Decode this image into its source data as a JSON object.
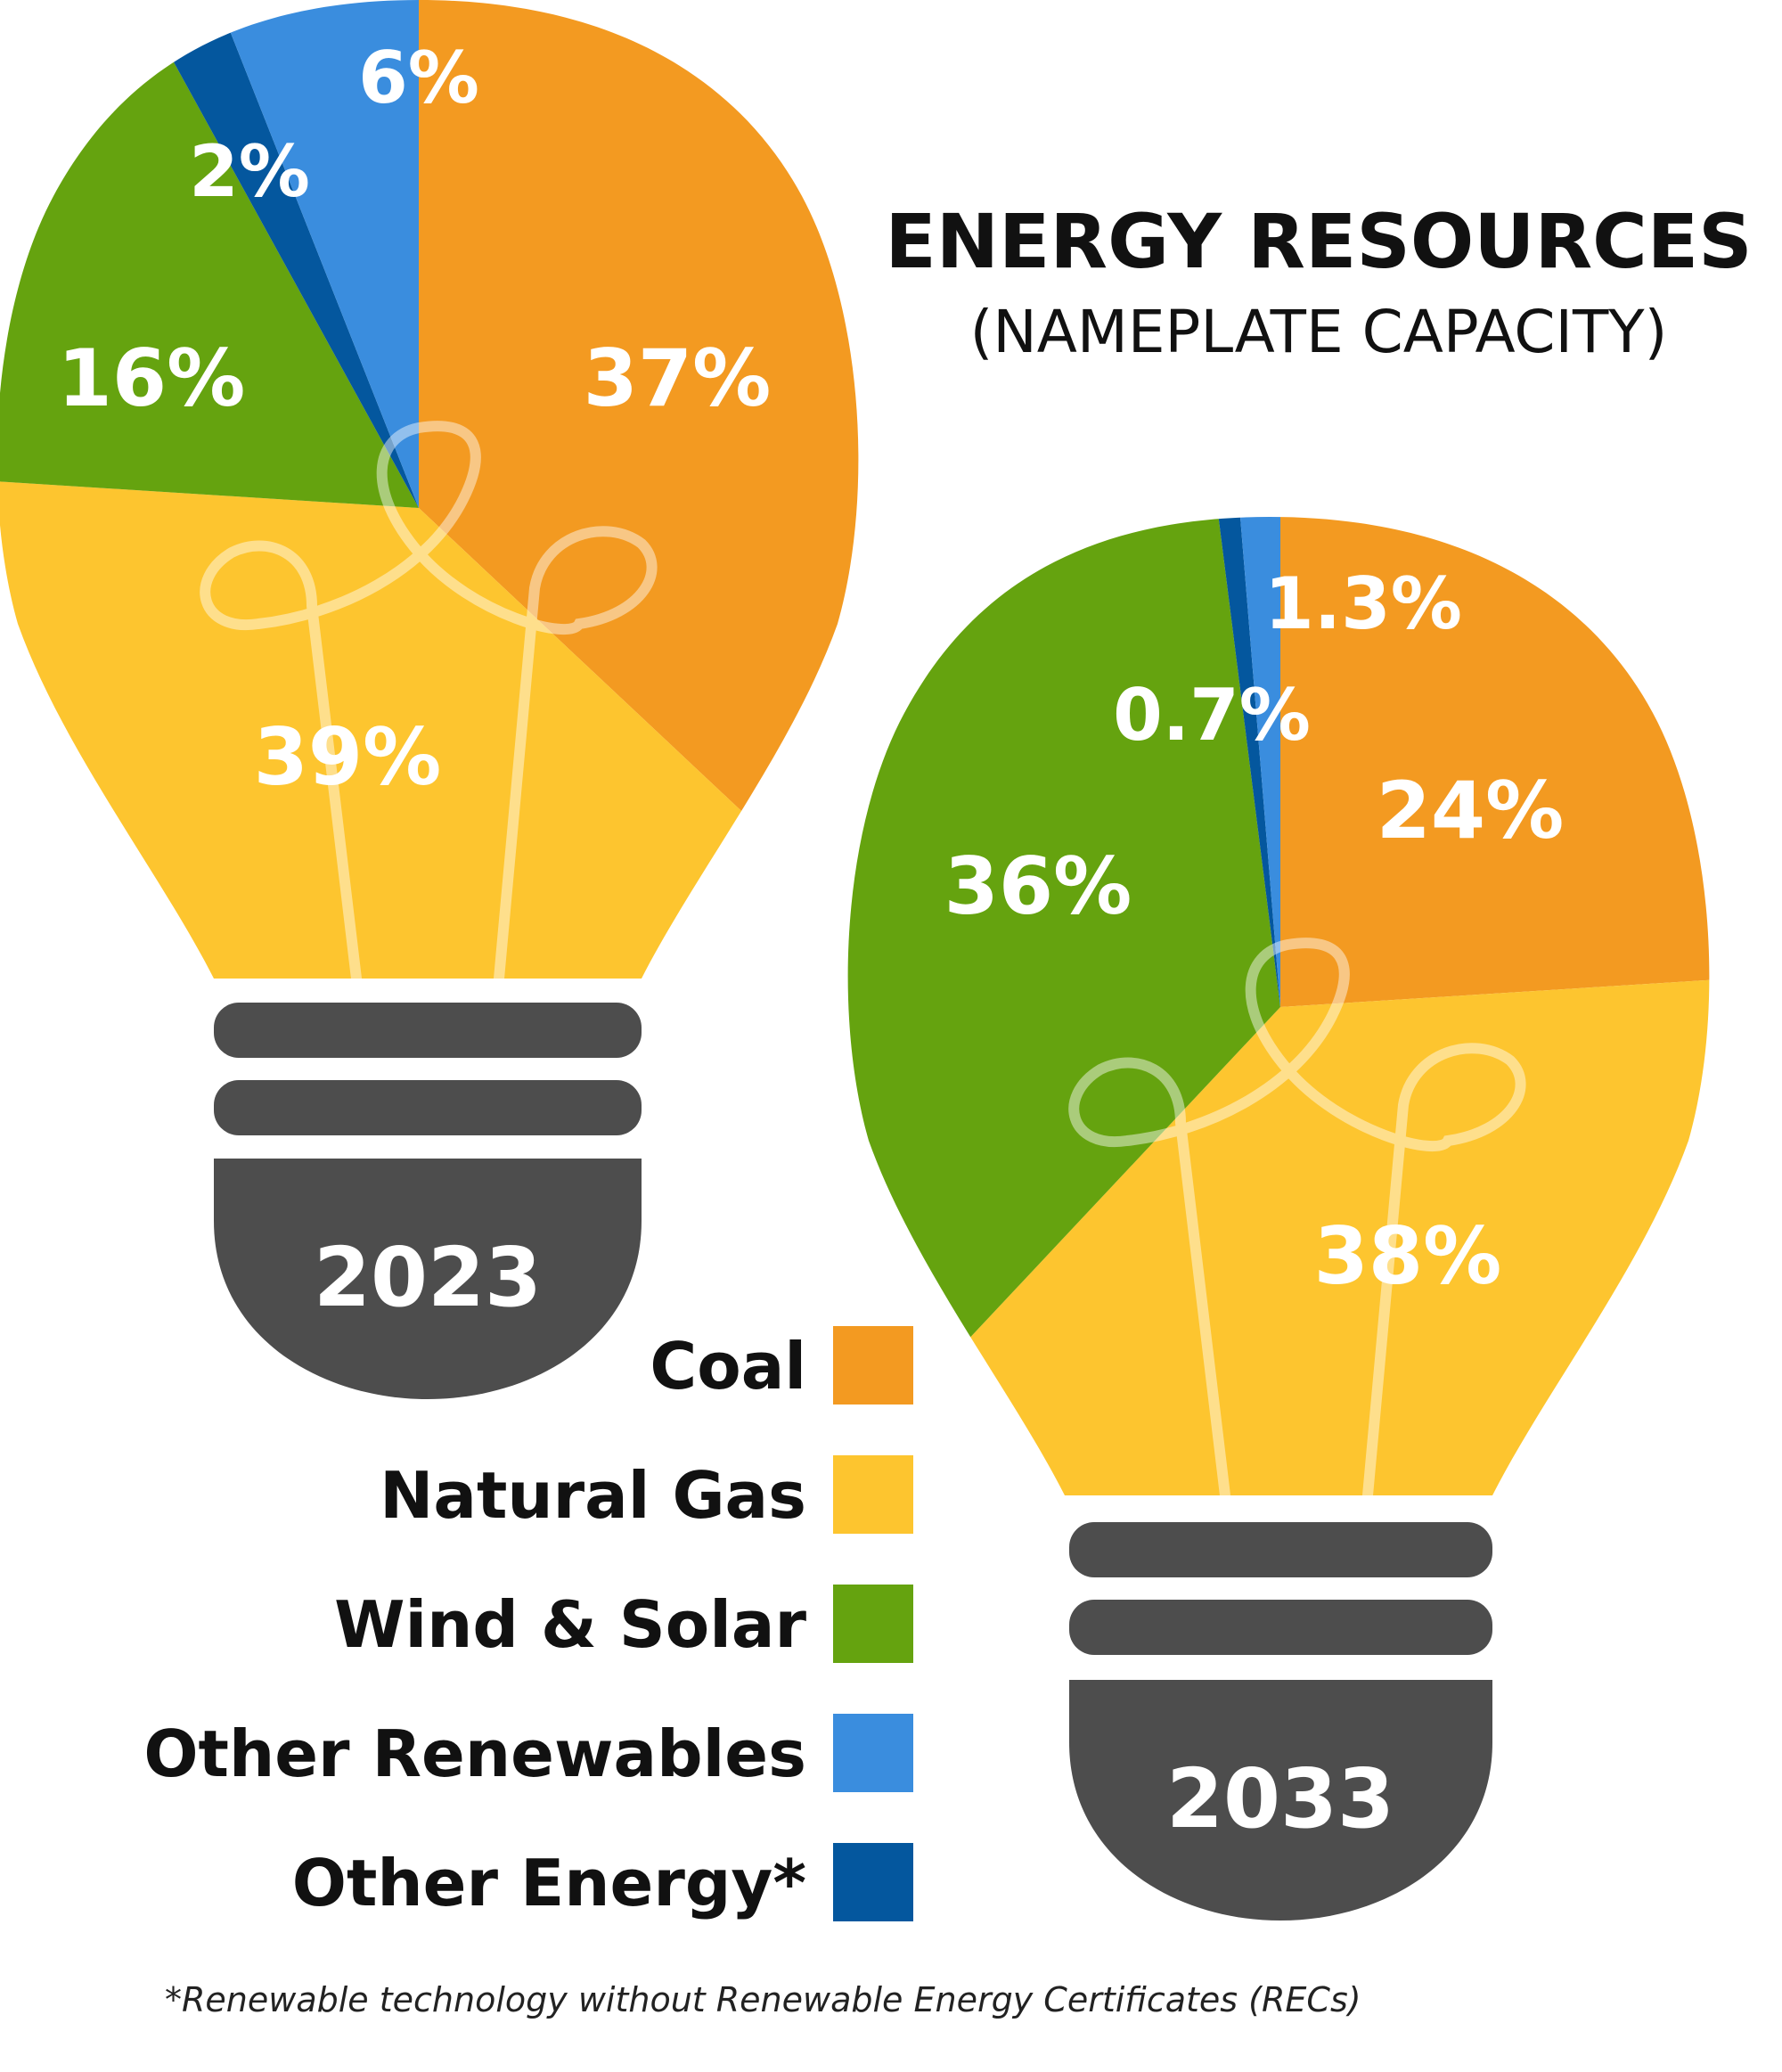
{
  "title": "ENERGY RESOURCES",
  "subtitle": "(NAMEPLATE CAPACITY)",
  "footnote": "*Renewable technology without Renewable Energy Certificates (RECs)",
  "legend": [
    {
      "label": "Coal",
      "color": "#F39A21"
    },
    {
      "label": "Natural Gas",
      "color": "#FDC52F"
    },
    {
      "label": "Wind & Solar",
      "color": "#65A30F"
    },
    {
      "label": "Other Renewables",
      "color": "#3A8DDE"
    },
    {
      "label": "Other Energy*",
      "color": "#04579E"
    }
  ],
  "chart_data": [
    {
      "type": "pie",
      "year_label": "2023",
      "categories": [
        "Coal",
        "Natural Gas",
        "Wind & Solar",
        "Other Energy*",
        "Other Renewables"
      ],
      "values": [
        37,
        39,
        16,
        2,
        6
      ],
      "labels": [
        "37%",
        "39%",
        "16%",
        "2%",
        "6%"
      ],
      "colors": [
        "#F39A21",
        "#FDC52F",
        "#65A30F",
        "#04579E",
        "#3A8DDE"
      ]
    },
    {
      "type": "pie",
      "year_label": "2033",
      "categories": [
        "Coal",
        "Natural Gas",
        "Wind & Solar",
        "Other Energy*",
        "Other Renewables"
      ],
      "values": [
        24,
        38,
        36,
        0.7,
        1.3
      ],
      "labels": [
        "24%",
        "38%",
        "36%",
        "0.7%",
        "1.3%"
      ],
      "colors": [
        "#F39A21",
        "#FDC52F",
        "#65A30F",
        "#04579E",
        "#3A8DDE"
      ]
    }
  ]
}
